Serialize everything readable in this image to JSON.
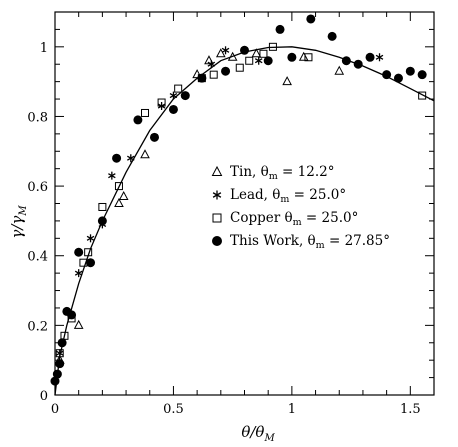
{
  "chart_data": {
    "type": "scatter",
    "title": "",
    "xlabel": "θ/θ_M",
    "ylabel": "γ/γ_M",
    "xlim": [
      0,
      1.6
    ],
    "ylim": [
      0,
      1.1
    ],
    "x_ticks": [
      "0",
      "0.5",
      "1",
      "1.5"
    ],
    "y_ticks": [
      "0",
      "0.2",
      "0.4",
      "0.6",
      "0.8",
      "1"
    ],
    "legend_position": "center-right",
    "grid": false,
    "series": [
      {
        "name": "Tin",
        "theta_label": "θm = 12.2°",
        "marker": "open-triangle",
        "x": [
          0.02,
          0.1,
          0.27,
          0.29,
          0.38,
          0.6,
          0.65,
          0.7,
          0.75,
          0.85,
          0.98,
          1.05,
          1.2
        ],
        "y": [
          0.1,
          0.2,
          0.55,
          0.57,
          0.69,
          0.92,
          0.96,
          0.98,
          0.97,
          0.98,
          0.9,
          0.97,
          0.93
        ]
      },
      {
        "name": "Lead",
        "theta_label": "θm = 25.0°",
        "marker": "asterisk",
        "x": [
          0.02,
          0.1,
          0.15,
          0.2,
          0.24,
          0.32,
          0.45,
          0.5,
          0.66,
          0.72,
          0.86,
          1.37
        ],
        "y": [
          0.12,
          0.35,
          0.45,
          0.49,
          0.63,
          0.68,
          0.83,
          0.86,
          0.95,
          0.99,
          0.96,
          0.97
        ]
      },
      {
        "name": "Copper",
        "theta_label": "θm = 25.0°",
        "marker": "open-square",
        "x": [
          0.02,
          0.04,
          0.07,
          0.12,
          0.14,
          0.2,
          0.27,
          0.38,
          0.45,
          0.52,
          0.62,
          0.67,
          0.78,
          0.82,
          0.88,
          0.92,
          1.07,
          1.55
        ],
        "y": [
          0.12,
          0.17,
          0.22,
          0.38,
          0.41,
          0.54,
          0.6,
          0.81,
          0.84,
          0.88,
          0.91,
          0.92,
          0.94,
          0.96,
          0.98,
          1.0,
          0.97,
          0.86
        ]
      },
      {
        "name": "This Work",
        "theta_label": "θm = 27.85°",
        "marker": "filled-circle",
        "x": [
          0.0,
          0.01,
          0.02,
          0.03,
          0.05,
          0.07,
          0.1,
          0.15,
          0.2,
          0.26,
          0.35,
          0.42,
          0.5,
          0.55,
          0.62,
          0.72,
          0.8,
          0.9,
          0.95,
          1.0,
          1.08,
          1.17,
          1.23,
          1.28,
          1.33,
          1.4,
          1.45,
          1.5,
          1.55
        ],
        "y": [
          0.04,
          0.06,
          0.09,
          0.15,
          0.24,
          0.23,
          0.41,
          0.38,
          0.5,
          0.68,
          0.79,
          0.74,
          0.82,
          0.86,
          0.91,
          0.93,
          0.99,
          0.96,
          1.05,
          0.97,
          1.08,
          1.03,
          0.96,
          0.95,
          0.97,
          0.92,
          0.91,
          0.93,
          0.92
        ]
      },
      {
        "name": "fit",
        "marker": "line",
        "x": [
          0,
          0.02,
          0.05,
          0.1,
          0.15,
          0.2,
          0.3,
          0.4,
          0.5,
          0.6,
          0.7,
          0.8,
          0.9,
          1.0,
          1.1,
          1.2,
          1.3,
          1.4,
          1.5,
          1.6
        ],
        "y": [
          0,
          0.11,
          0.2,
          0.32,
          0.42,
          0.5,
          0.64,
          0.76,
          0.85,
          0.91,
          0.96,
          0.985,
          0.998,
          1.0,
          0.99,
          0.97,
          0.945,
          0.915,
          0.88,
          0.845
        ]
      }
    ]
  }
}
